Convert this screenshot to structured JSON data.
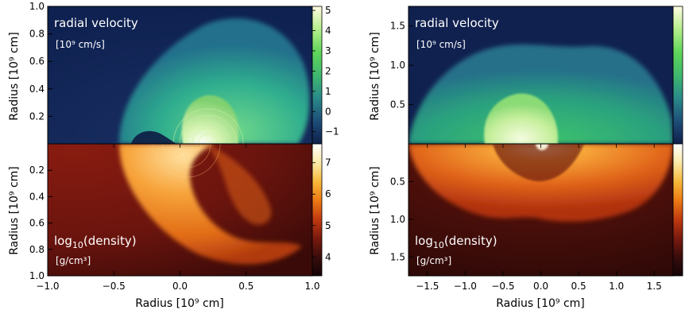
{
  "chart_data": [
    {
      "type": "heatmap",
      "panel": "left",
      "top_panel": {
        "label": "radial velocity",
        "unit": "[10⁹ cm/s]",
        "colorbar_ticks": [
          "5",
          "4",
          "3",
          "2",
          "1",
          "0",
          "−1"
        ],
        "colorbar_range": [
          -1.6,
          5.2
        ],
        "colorbar_gradient": [
          "#0f1f4a",
          "#1d4e78",
          "#2a8a8a",
          "#3fb86e",
          "#5fd65a",
          "#b4ee8c",
          "#fffbe2"
        ],
        "yticks": [
          "1.0",
          "0.8",
          "0.6",
          "0.4",
          "0.2"
        ],
        "ylim": [
          0,
          1.0
        ]
      },
      "bottom_panel": {
        "label": "log",
        "label_sub": "10",
        "label_tail": "(density)",
        "unit": "[g/cm³]",
        "colorbar_ticks": [
          "7",
          "6",
          "5",
          "4"
        ],
        "colorbar_range": [
          3.4,
          7.6
        ],
        "colorbar_gradient": [
          "#150406",
          "#3a0d0c",
          "#7a1a0e",
          "#c03a10",
          "#ec7a14",
          "#f8b83a",
          "#fbe9a8",
          "#ffffff"
        ],
        "yticks": [
          "0.2",
          "0.4",
          "0.6",
          "0.8",
          "1.0"
        ],
        "ylim": [
          0,
          1.0
        ]
      },
      "ylabel": "Radius [10⁹ cm]",
      "xlabel": "Radius [10⁹ cm]",
      "xticks": [
        "−1.0",
        "−0.5",
        "0.0",
        "0.5",
        "1.0"
      ],
      "xlim": [
        -1.0,
        1.0
      ]
    },
    {
      "type": "heatmap",
      "panel": "right",
      "top_panel": {
        "label": "radial velocity",
        "unit": "[10⁹ cm/s]",
        "colorbar_gradient": [
          "#0f1f4a",
          "#1d4e78",
          "#2a8a8a",
          "#3fb86e",
          "#5fd65a",
          "#b4ee8c",
          "#fffbe2"
        ],
        "yticks": [
          "1.5",
          "1.0",
          "0.5"
        ],
        "ylim": [
          0,
          1.75
        ]
      },
      "bottom_panel": {
        "label": "log",
        "label_sub": "10",
        "label_tail": "(density)",
        "unit": "[g/cm³]",
        "colorbar_gradient": [
          "#150406",
          "#3a0d0c",
          "#7a1a0e",
          "#c03a10",
          "#ec7a14",
          "#f8b83a",
          "#fbe9a8",
          "#ffffff"
        ],
        "yticks": [
          "0.5",
          "1.0",
          "1.5"
        ],
        "ylim": [
          0,
          1.75
        ]
      },
      "ylabel": "Radius [10⁹ cm]",
      "xlabel": "Radius [10⁹ cm]",
      "xticks": [
        "−1.5",
        "−1.0",
        "−0.5",
        "0.0",
        "0.5",
        "1.0",
        "1.5"
      ],
      "xlim": [
        -1.75,
        1.75
      ]
    }
  ]
}
